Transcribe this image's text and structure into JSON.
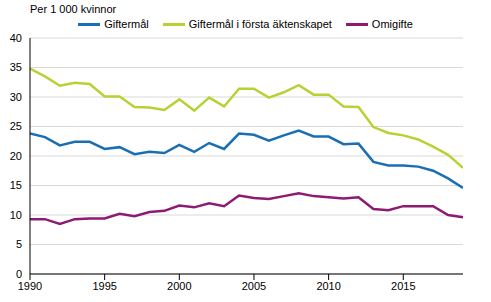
{
  "chart_data": {
    "type": "line",
    "y_label": "Per 1 000 kvinnor",
    "x": [
      1990,
      1991,
      1992,
      1993,
      1994,
      1995,
      1996,
      1997,
      1998,
      1999,
      2000,
      2001,
      2002,
      2003,
      2004,
      2005,
      2006,
      2007,
      2008,
      2009,
      2010,
      2011,
      2012,
      2013,
      2014,
      2015,
      2016,
      2017,
      2018,
      2019
    ],
    "series": [
      {
        "name": "Giftermål",
        "color": "#1a6fb4",
        "values": [
          23.8,
          23.2,
          21.8,
          22.4,
          22.4,
          21.2,
          21.5,
          20.3,
          20.7,
          20.5,
          21.9,
          20.7,
          22.2,
          21.2,
          23.8,
          23.6,
          22.6,
          23.5,
          24.3,
          23.3,
          23.3,
          22.0,
          22.1,
          19.0,
          18.4,
          18.4,
          18.2,
          17.5,
          16.2,
          14.6
        ]
      },
      {
        "name": "Giftermål i första äktenskapet",
        "color": "#b5d334",
        "values": [
          34.8,
          33.5,
          31.9,
          32.4,
          32.2,
          30.1,
          30.1,
          28.3,
          28.2,
          27.8,
          29.6,
          27.7,
          29.9,
          28.4,
          31.4,
          31.4,
          29.9,
          30.8,
          32.0,
          30.4,
          30.4,
          28.4,
          28.3,
          24.9,
          23.9,
          23.5,
          22.8,
          21.6,
          20.2,
          18.0
        ]
      },
      {
        "name": "Omigifte",
        "color": "#8e1a73",
        "values": [
          9.3,
          9.3,
          8.5,
          9.3,
          9.4,
          9.4,
          10.2,
          9.8,
          10.5,
          10.7,
          11.6,
          11.3,
          12.0,
          11.5,
          13.3,
          12.9,
          12.7,
          13.2,
          13.7,
          13.2,
          13.0,
          12.8,
          13.0,
          11.0,
          10.8,
          11.5,
          11.5,
          11.5,
          10.0,
          9.6
        ]
      }
    ],
    "xlim": [
      1990,
      2019
    ],
    "xticks": [
      1990,
      1995,
      2000,
      2005,
      2010,
      2015
    ],
    "ylim": [
      0,
      40
    ],
    "yticks": [
      0,
      5,
      10,
      15,
      20,
      25,
      30,
      35,
      40
    ],
    "grid": true,
    "legend": "top"
  }
}
